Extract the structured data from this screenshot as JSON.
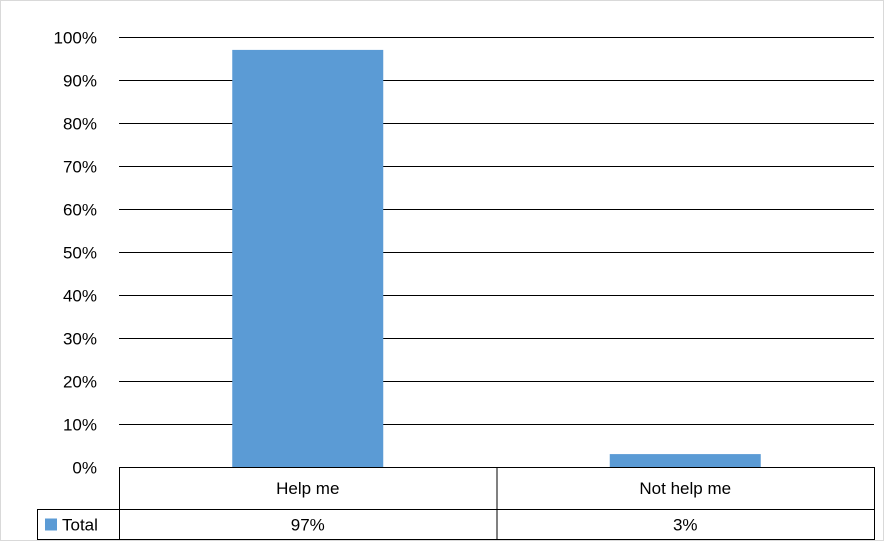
{
  "chart_data": {
    "type": "bar",
    "categories": [
      "Help me",
      "Not help me"
    ],
    "series": [
      {
        "name": "Total",
        "values": [
          97,
          3
        ],
        "labels": [
          "97%",
          "3%"
        ]
      }
    ],
    "y_ticks": [
      "0%",
      "10%",
      "20%",
      "30%",
      "40%",
      "50%",
      "60%",
      "70%",
      "80%",
      "90%",
      "100%"
    ],
    "ylim": [
      0,
      100
    ],
    "y_unit": "%",
    "grid": true,
    "legend_placement": "data-table",
    "data_table": true,
    "title": "",
    "xlabel": "",
    "ylabel": ""
  },
  "colors": {
    "bar": "#5b9bd5",
    "grid": "#000000",
    "border": "#d9d9d9",
    "table_line": "#000000"
  }
}
